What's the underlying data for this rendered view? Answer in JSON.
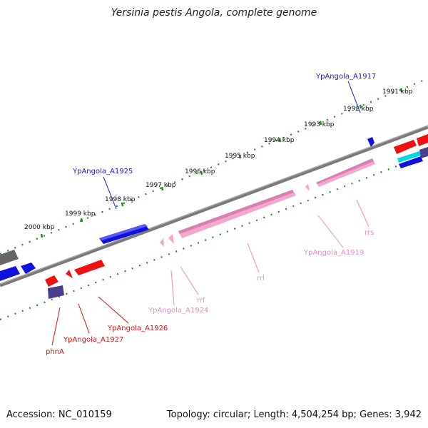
{
  "title": "Yersinia pestis Angola, complete genome",
  "footer": {
    "accession": "Accession: NC_010159",
    "summary": "Topology: circular; Length: 4,504,254 bp; Genes: 3,942"
  },
  "scale_labels": [
    "1991 kbp",
    "1992 kbp",
    "1993 kbp",
    "1994 kbp",
    "1995 kbp",
    "1996 kbp",
    "1997 kbp",
    "1998 kbp",
    "1999 kbp",
    "2000 kbp"
  ],
  "gene_labels": [
    {
      "text": "YpAngola_A1917",
      "color": "#1a1acc"
    },
    {
      "text": "YpAngola_A1925",
      "color": "#1a1acc"
    },
    {
      "text": "rrs",
      "color": "#e88fbf"
    },
    {
      "text": "YpAngola_A1919",
      "color": "#e88fbf"
    },
    {
      "text": "rrl",
      "color": "#e88fbf"
    },
    {
      "text": "rrf",
      "color": "#e88fbf"
    },
    {
      "text": "YpAngola_A1924",
      "color": "#e88fbf"
    },
    {
      "text": "YpAngola_A1926",
      "color": "#dd1111"
    },
    {
      "text": "YpAngola_A1927",
      "color": "#dd1111"
    },
    {
      "text": "phnA",
      "color": "#dd1111"
    }
  ],
  "colors": {
    "backbone": "#7a7a7a",
    "tick": "#2a8a2a",
    "forward_cds": "#1010e0",
    "reverse_cds": "#ee1111",
    "rrna": "#f4a6cf",
    "other": "#4a3d8a",
    "pseudo": "#666666",
    "misc": "#00d8e8"
  }
}
